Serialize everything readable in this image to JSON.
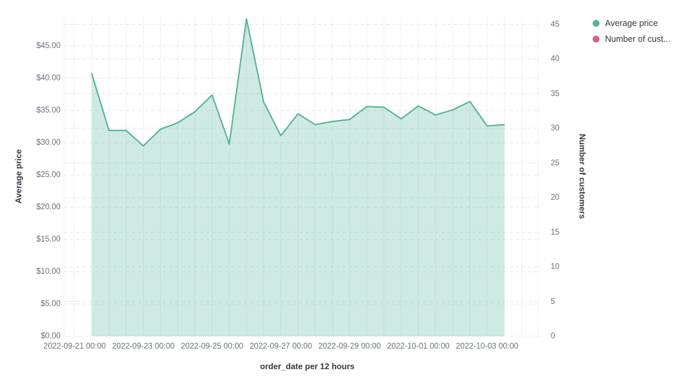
{
  "chart_data": {
    "type": "area",
    "title": "",
    "xlabel": "order_date per 12 hours",
    "x": [
      "2022-09-21 12:00",
      "2022-09-22 00:00",
      "2022-09-22 12:00",
      "2022-09-23 00:00",
      "2022-09-23 12:00",
      "2022-09-24 00:00",
      "2022-09-24 12:00",
      "2022-09-25 00:00",
      "2022-09-25 12:00",
      "2022-09-26 00:00",
      "2022-09-26 12:00",
      "2022-09-27 00:00",
      "2022-09-27 12:00",
      "2022-09-28 00:00",
      "2022-09-28 12:00",
      "2022-09-29 00:00",
      "2022-09-29 12:00",
      "2022-09-30 00:00",
      "2022-09-30 12:00",
      "2022-10-01 00:00",
      "2022-10-01 12:00",
      "2022-10-02 00:00",
      "2022-10-02 12:00",
      "2022-10-03 00:00",
      "2022-10-03 12:00"
    ],
    "series": [
      {
        "name": "Average price",
        "axis": "left",
        "color": "#54B399",
        "fill_opacity": 0.28,
        "visible": true,
        "values": [
          40.7,
          31.9,
          31.9,
          29.5,
          32.1,
          33.1,
          34.8,
          37.4,
          29.8,
          49.2,
          36.3,
          31.1,
          34.5,
          32.8,
          33.3,
          33.6,
          35.6,
          35.5,
          33.7,
          35.7,
          34.3,
          35.1,
          36.4,
          32.6,
          32.8
        ]
      },
      {
        "name": "Number of cust...",
        "axis": "right",
        "color": "#D36086",
        "visible": false,
        "values": []
      }
    ],
    "left_axis": {
      "title": "Average price",
      "tick_labels": [
        "$0.00",
        "$5.00",
        "$10.00",
        "$15.00",
        "$20.00",
        "$25.00",
        "$30.00",
        "$35.00",
        "$40.00",
        "$45.00"
      ],
      "tick_values": [
        0,
        5,
        10,
        15,
        20,
        25,
        30,
        35,
        40,
        45
      ],
      "min": 0,
      "max": 49.5
    },
    "right_axis": {
      "title": "Number of customers",
      "tick_labels": [
        "0",
        "5",
        "10",
        "15",
        "20",
        "25",
        "30",
        "35",
        "40",
        "45"
      ],
      "tick_values": [
        0,
        5,
        10,
        15,
        20,
        25,
        30,
        35,
        40,
        45
      ],
      "min": 0,
      "max": 46
    },
    "x_axis": {
      "tick_labels": [
        "2022-09-21 00:00",
        "2022-09-23 00:00",
        "2022-09-25 00:00",
        "2022-09-27 00:00",
        "2022-09-29 00:00",
        "2022-10-01 00:00",
        "2022-10-03 00:00"
      ],
      "minor_grid_interval": "12 hours"
    },
    "legend": [
      {
        "label": "Average price",
        "color": "#54B399"
      },
      {
        "label": "Number of cust...",
        "color": "#D36086"
      }
    ],
    "legend_position": "top-right",
    "grid": {
      "vertical": "solid",
      "horizontal": "dashed"
    },
    "colors": {
      "v_grid": "#eef0f3",
      "h_grid": "#e3e6ea",
      "tick_text": "#69707d",
      "title_text": "#343741",
      "background": "#ffffff"
    }
  }
}
